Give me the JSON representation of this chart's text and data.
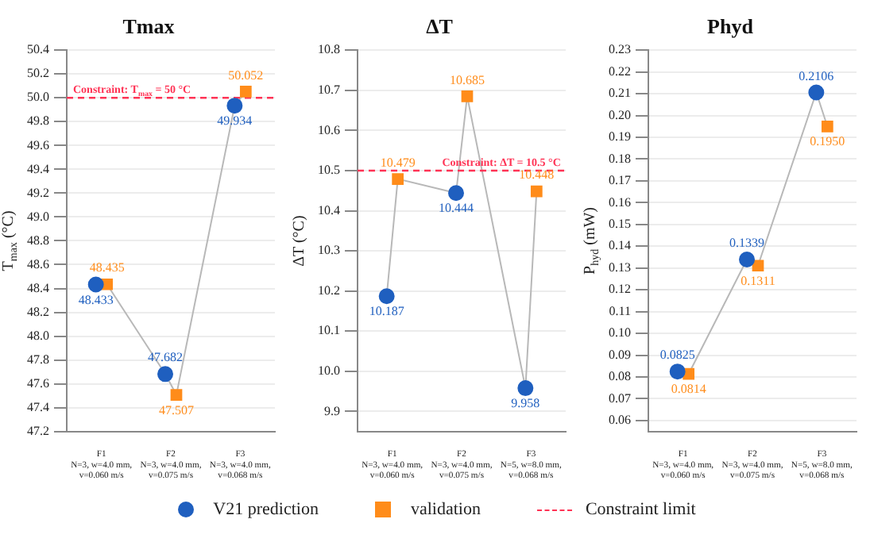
{
  "chart_data": [
    {
      "type": "scatter",
      "title": "Tmax",
      "ylabel": "T$_{max}$ (°C)",
      "categories": [
        "F1\nN=3, w=4.0 mm,\nv=0.060 m/s",
        "F2\nN=3, w=4.0 mm,\nv=0.075 m/s",
        "F3\nN=3, w=4.0 mm,\nv=0.068 m/s"
      ],
      "series": [
        {
          "color": "#1f5fbf",
          "marker": "circle",
          "values": [
            48.433,
            47.682,
            49.934
          ],
          "value_labels": [
            "48.433",
            "47.682",
            "49.934"
          ]
        },
        {
          "color": "#ff8c1a",
          "marker": "square",
          "values": [
            48.435,
            47.507,
            50.052
          ],
          "value_labels": [
            "48.435",
            "47.507",
            "50.052"
          ]
        }
      ],
      "ylim": [
        47.2,
        50.4
      ],
      "yticks": [
        47.2,
        47.4,
        47.6,
        47.8,
        {
          "value": 48,
          "label": "48.0"
        },
        48.2,
        48.4,
        48.6,
        48.8,
        {
          "value": 49,
          "label": "49.0"
        },
        49.2,
        49.4,
        49.6,
        49.8,
        {
          "value": 50,
          "label": "50.0"
        },
        50.2,
        50.4
      ],
      "ref_lines": [
        {
          "axis": "y",
          "value": 50,
          "label": "Constraint: T$_{max}$ = 50 °C",
          "color": "#ff3355",
          "line_style": "dashed"
        }
      ],
      "grid": "y"
    },
    {
      "type": "scatter",
      "title": "ΔT",
      "ylabel": "ΔT (°C)",
      "categories": [
        "F1\nN=3, w=4.0 mm,\nv=0.060 m/s",
        "F2\nN=3, w=4.0 mm,\nv=0.075 m/s",
        "F3\nN=5, w=8.0 mm,\nv=0.068 m/s"
      ],
      "series": [
        {
          "name": "V21 prediction",
          "color": "#1f5fbf",
          "marker": "circle",
          "values": [
            10.187,
            10.444,
            9.958
          ],
          "value_labels": [
            "10.187",
            "10.444",
            "9.958"
          ]
        },
        {
          "name": "validation",
          "color": "#ff8c1a",
          "marker": "square",
          "values": [
            10.479,
            10.685,
            10.448
          ],
          "value_labels": [
            "10.479",
            "10.685",
            "10.448"
          ]
        }
      ],
      "ylim": [
        9.85,
        10.8
      ],
      "yticks": [
        9.9,
        {
          "value": 10,
          "label": "10.0"
        },
        10.1,
        10.2,
        10.3,
        10.4,
        10.5,
        10.6,
        10.7,
        10.8
      ],
      "ref_lines": [
        {
          "axis": "y",
          "value": 10.5,
          "label": "Constraint: ΔT = 10.5 °C",
          "color": "#ff3355",
          "line_style": "dashed"
        }
      ],
      "annotations": [
        "Constraint limit"
      ],
      "legend": "bottom",
      "grid": "y"
    },
    {
      "type": "scatter",
      "title": "Phyd",
      "ylabel": "P$_{hyd}$ (mW)",
      "categories": [
        "F1\nN=3, w=4.0 mm,\nv=0.060 m/s",
        "F2\nN=3, w=4.0 mm,\nv=0.075 m/s",
        "F3\nN=5, w=8.0 mm,\nv=0.068 m/s"
      ],
      "series": [
        {
          "color": "#1f5fbf",
          "marker": "circle",
          "values": [
            0.0825,
            0.1339,
            0.2106
          ],
          "value_labels": [
            "0.0825",
            "0.1339",
            "0.2106"
          ]
        },
        {
          "color": "#ff8c1a",
          "marker": "square",
          "values": [
            0.0814,
            0.1311,
            0.195
          ],
          "value_labels": [
            "0.0814",
            "0.1311",
            "0.1950"
          ]
        }
      ],
      "ylim": [
        0.055,
        0.23
      ],
      "yticks": [
        0.06,
        0.07,
        0.08,
        0.09,
        {
          "value": 0.1,
          "label": "0.10"
        },
        0.11,
        0.12,
        0.13,
        0.14,
        0.15,
        0.16,
        0.17,
        0.18,
        0.19,
        {
          "value": 0.2,
          "label": "0.20"
        },
        0.21,
        0.22,
        0.23
      ],
      "grid": "y"
    }
  ]
}
